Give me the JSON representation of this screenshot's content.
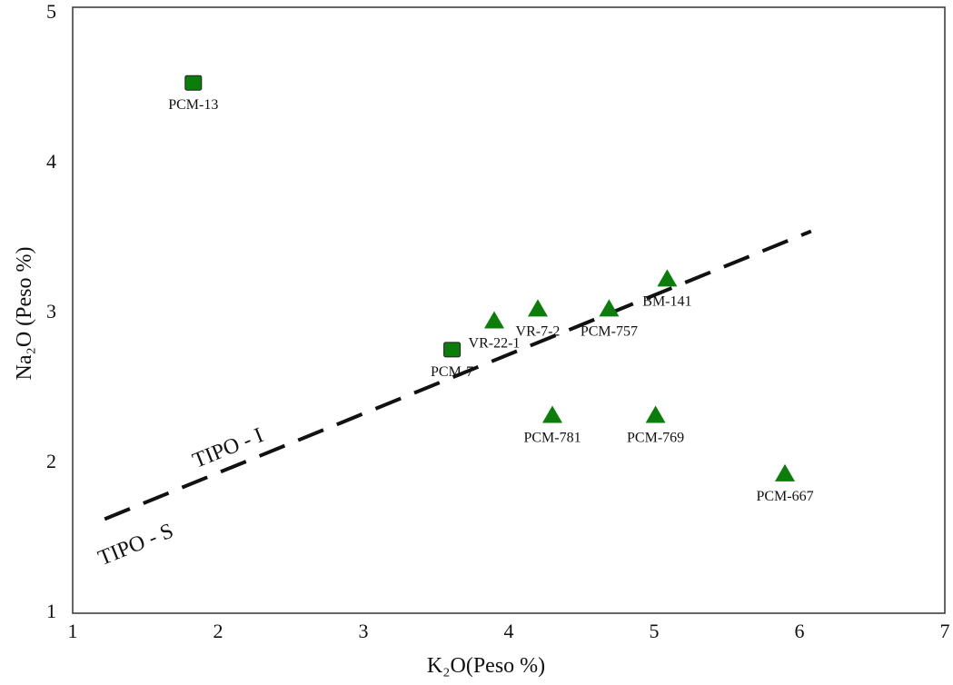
{
  "chart_data": {
    "type": "scatter",
    "title": "",
    "xlabel": "K₂O(Peso %)",
    "ylabel": "Na₂O (Peso %)",
    "xlim": [
      1,
      7
    ],
    "ylim": [
      1,
      5
    ],
    "xticks": [
      "1",
      "2",
      "3",
      "4",
      "5",
      "6",
      "7"
    ],
    "yticks": [
      "1",
      "2",
      "3",
      "4",
      "5"
    ],
    "grid": false,
    "marker_color": "#0a7d0a",
    "points": [
      {
        "label": "PCM-13",
        "x": 1.83,
        "y": 4.52,
        "marker": "square"
      },
      {
        "label": "PCM-7",
        "x": 3.61,
        "y": 2.74,
        "marker": "square"
      },
      {
        "label": "VR-22-1",
        "x": 3.9,
        "y": 2.93,
        "marker": "triangle"
      },
      {
        "label": "VR-7-2",
        "x": 4.2,
        "y": 3.01,
        "marker": "triangle"
      },
      {
        "label": "PCM-757",
        "x": 4.69,
        "y": 3.01,
        "marker": "triangle"
      },
      {
        "label": "BM-141",
        "x": 5.09,
        "y": 3.21,
        "marker": "triangle"
      },
      {
        "label": "PCM-781",
        "x": 4.3,
        "y": 2.3,
        "marker": "triangle"
      },
      {
        "label": "PCM-769",
        "x": 5.01,
        "y": 2.3,
        "marker": "triangle"
      },
      {
        "label": "PCM-667",
        "x": 5.9,
        "y": 1.91,
        "marker": "triangle"
      }
    ],
    "divider_line": {
      "style": "dashed",
      "x": [
        1.22,
        6.08
      ],
      "y": [
        1.61,
        3.53
      ]
    },
    "annotations": [
      {
        "text": "TIPO - I",
        "x": 1.85,
        "y": 1.95
      },
      {
        "text": "TIPO - S",
        "x": 1.2,
        "y": 1.3
      }
    ]
  }
}
